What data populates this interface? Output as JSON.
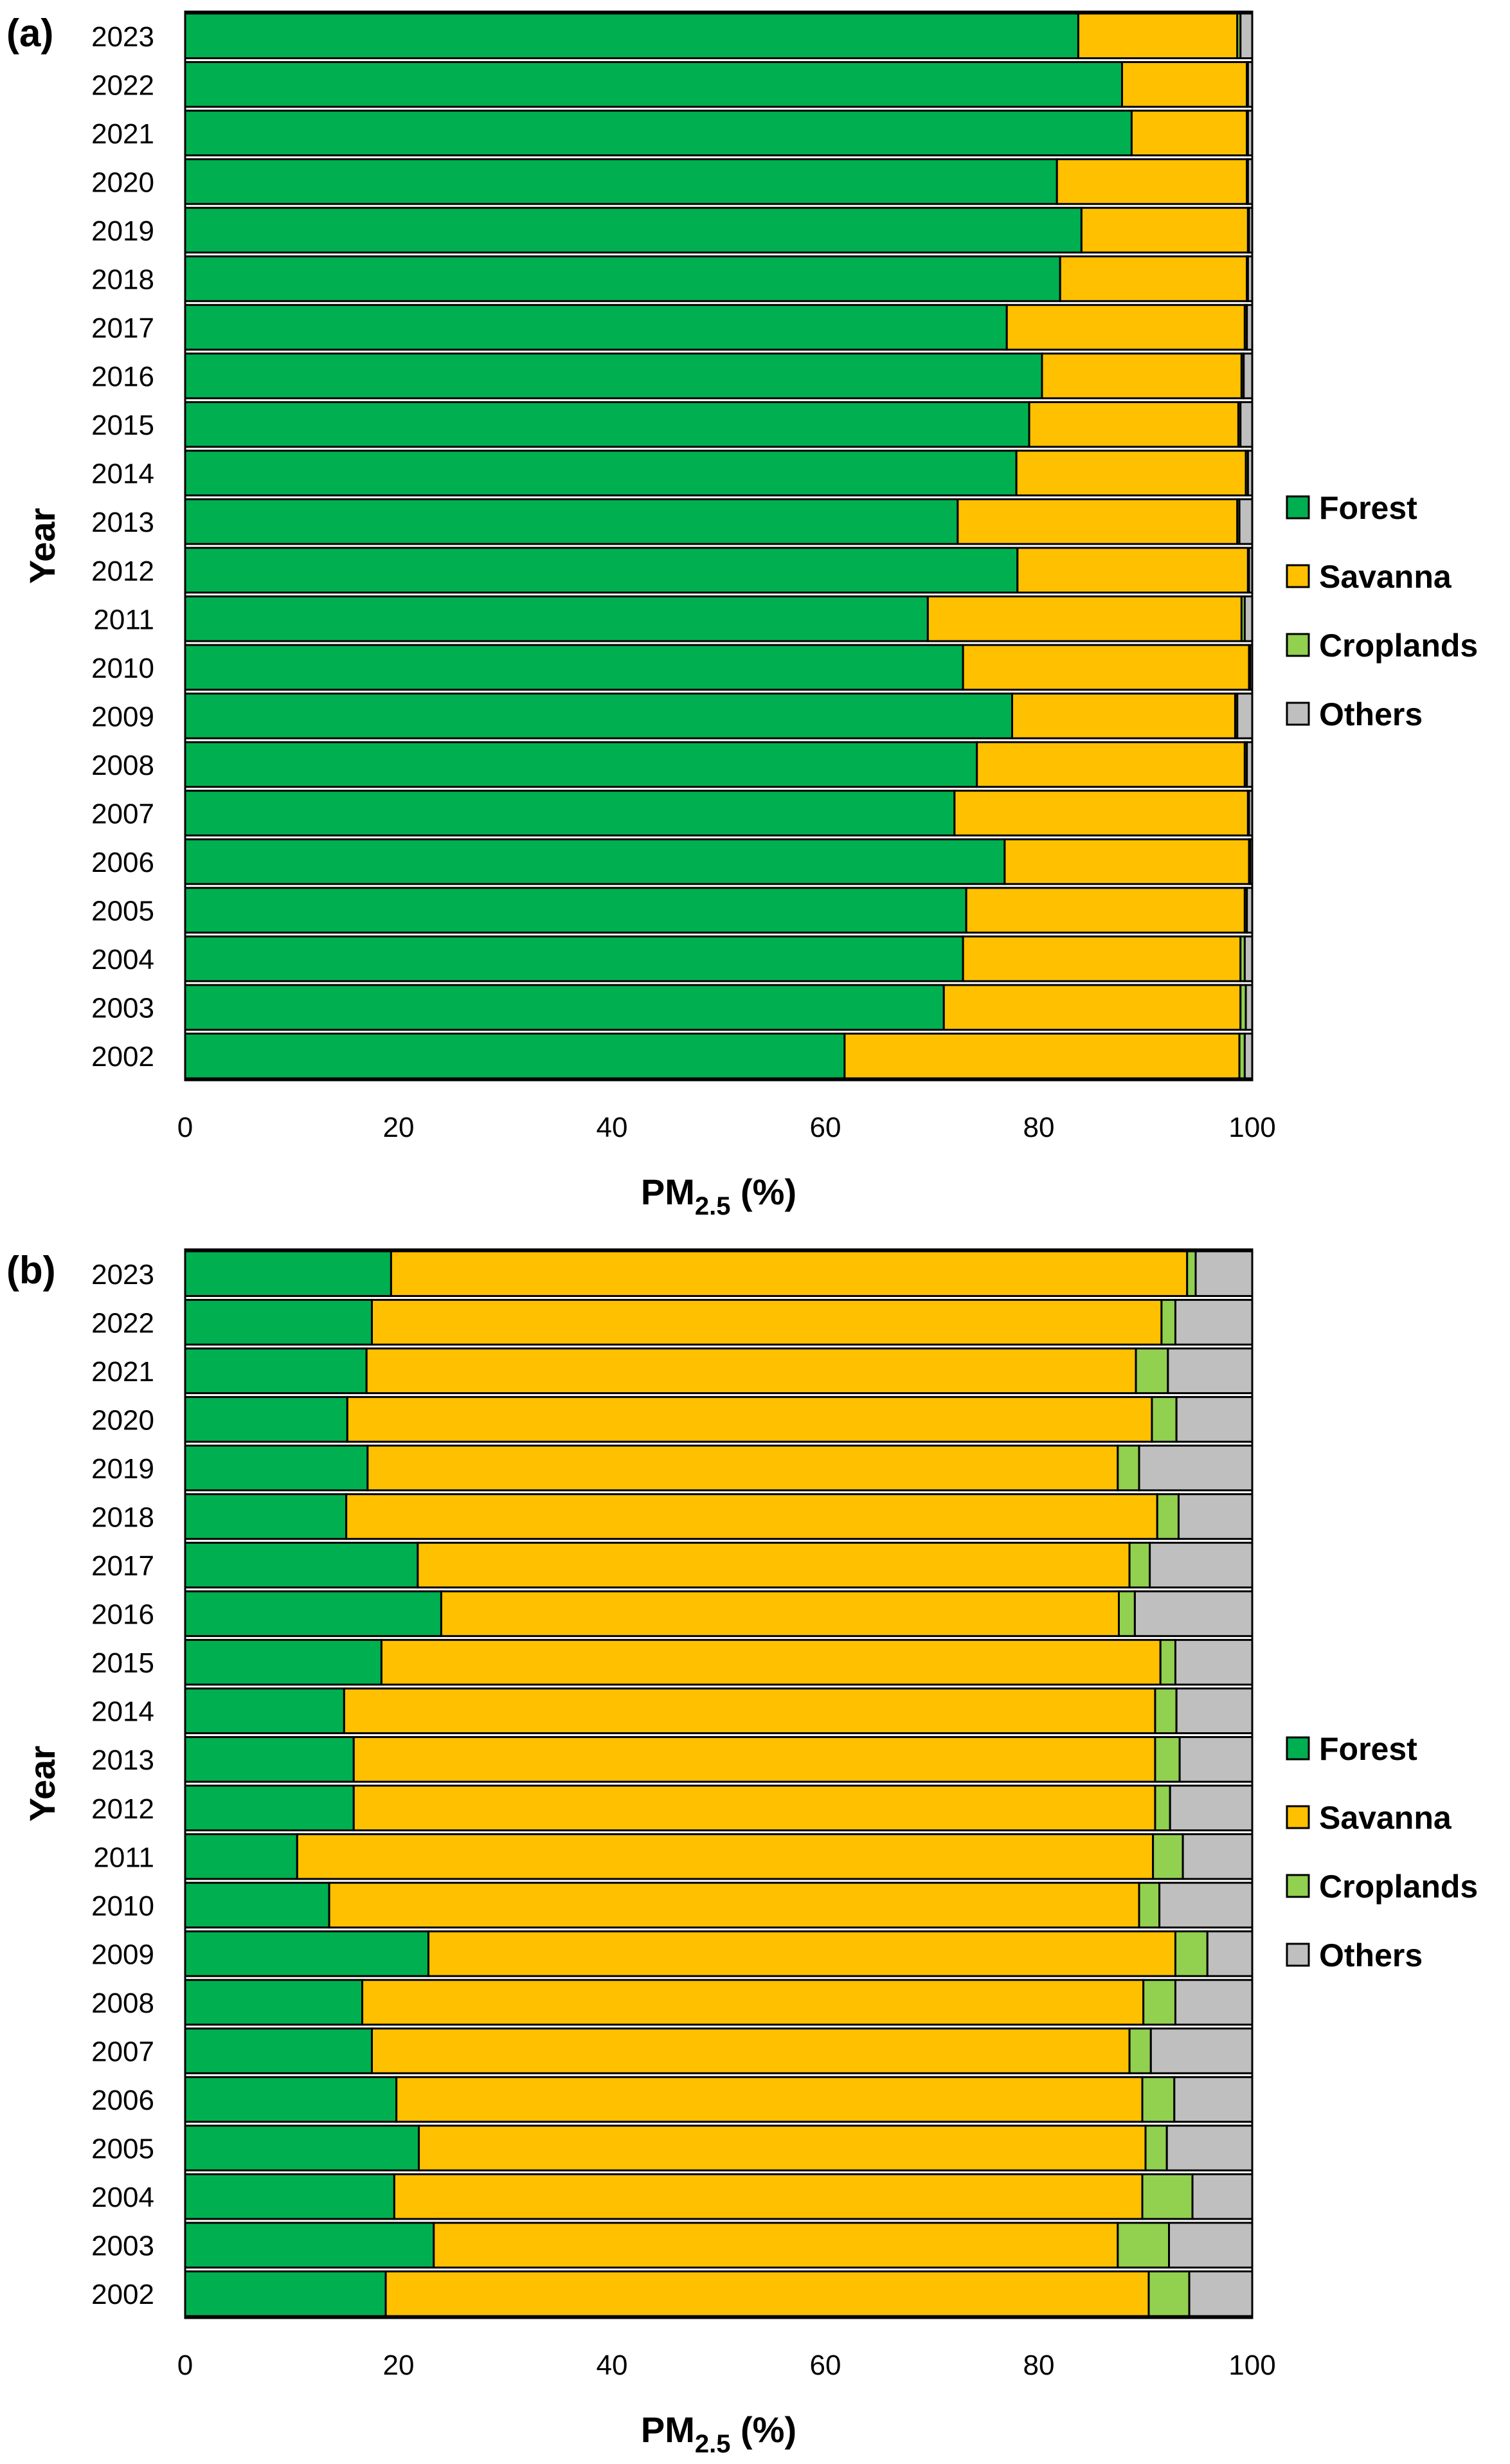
{
  "figure": {
    "panel_labels": [
      "(a)",
      "(b)"
    ]
  },
  "colors": {
    "Forest": "#00b050",
    "Savanna": "#ffc000",
    "Croplands": "#92d050",
    "Others": "#bfbfbf"
  },
  "chart_data": [
    {
      "panel": "(a)",
      "type": "bar",
      "orientation": "horizontal",
      "stacked": true,
      "title": "",
      "xlabel": "PM",
      "xlabel_subscript": "2.5",
      "xlabel_suffix": " (%)",
      "ylabel": "Year",
      "xlim": [
        0,
        100
      ],
      "xticks": [
        0,
        20,
        40,
        60,
        80,
        100
      ],
      "grid": false,
      "legend_position": "right",
      "categories": [
        "2023",
        "2022",
        "2021",
        "2020",
        "2019",
        "2018",
        "2017",
        "2016",
        "2015",
        "2014",
        "2013",
        "2012",
        "2011",
        "2010",
        "2009",
        "2008",
        "2007",
        "2006",
        "2005",
        "2004",
        "2003",
        "2002"
      ],
      "series": [
        {
          "name": "Forest",
          "values": [
            83.7,
            87.8,
            88.7,
            81.7,
            84.0,
            82.0,
            77.0,
            80.3,
            79.1,
            77.9,
            72.4,
            78.0,
            69.6,
            72.9,
            77.5,
            74.2,
            72.1,
            76.8,
            73.2,
            72.9,
            71.1,
            61.8
          ]
        },
        {
          "name": "Savanna",
          "values": [
            14.9,
            11.7,
            10.8,
            17.8,
            15.6,
            17.5,
            22.3,
            18.7,
            19.6,
            21.5,
            26.2,
            21.6,
            29.4,
            26.8,
            20.9,
            25.1,
            27.5,
            22.9,
            26.1,
            26.0,
            27.8,
            37.0
          ]
        },
        {
          "name": "Croplands",
          "values": [
            0.3,
            0.1,
            0.1,
            0.1,
            0.1,
            0.1,
            0.2,
            0.2,
            0.2,
            0.2,
            0.2,
            0.1,
            0.3,
            0.1,
            0.2,
            0.2,
            0.1,
            0.1,
            0.2,
            0.4,
            0.5,
            0.5
          ]
        },
        {
          "name": "Others",
          "values": [
            1.1,
            0.4,
            0.4,
            0.4,
            0.3,
            0.4,
            0.5,
            0.8,
            1.1,
            0.4,
            1.2,
            0.3,
            0.7,
            0.2,
            1.4,
            0.5,
            0.3,
            0.2,
            0.5,
            0.7,
            0.6,
            0.7
          ]
        }
      ]
    },
    {
      "panel": "(b)",
      "type": "bar",
      "orientation": "horizontal",
      "stacked": true,
      "title": "",
      "xlabel": "PM",
      "xlabel_subscript": "2.5",
      "xlabel_suffix": " (%)",
      "ylabel": "Year",
      "xlim": [
        0,
        100
      ],
      "xticks": [
        0,
        20,
        40,
        60,
        80,
        100
      ],
      "grid": false,
      "legend_position": "right",
      "categories": [
        "2023",
        "2022",
        "2021",
        "2020",
        "2019",
        "2018",
        "2017",
        "2016",
        "2015",
        "2014",
        "2013",
        "2012",
        "2011",
        "2010",
        "2009",
        "2008",
        "2007",
        "2006",
        "2005",
        "2004",
        "2003",
        "2002"
      ],
      "series": [
        {
          "name": "Forest",
          "values": [
            19.3,
            17.5,
            17.0,
            15.2,
            17.1,
            15.1,
            21.8,
            24.0,
            18.4,
            14.9,
            15.8,
            15.8,
            10.5,
            13.5,
            22.8,
            16.6,
            17.5,
            19.8,
            21.9,
            19.6,
            23.3,
            18.8
          ]
        },
        {
          "name": "Savanna",
          "values": [
            74.6,
            74.0,
            72.1,
            75.4,
            70.3,
            76.0,
            66.7,
            63.5,
            73.0,
            76.0,
            75.1,
            75.1,
            80.2,
            75.9,
            70.0,
            73.2,
            71.0,
            69.9,
            68.1,
            70.1,
            64.1,
            71.5
          ]
        },
        {
          "name": "Croplands",
          "values": [
            0.8,
            1.3,
            3.0,
            2.3,
            2.0,
            2.0,
            1.9,
            1.5,
            1.4,
            2.0,
            2.3,
            1.4,
            2.8,
            1.9,
            3.0,
            3.0,
            2.0,
            3.0,
            2.0,
            4.7,
            4.8,
            3.8
          ]
        },
        {
          "name": "Others",
          "values": [
            5.3,
            7.2,
            7.9,
            7.1,
            10.6,
            6.9,
            9.6,
            11.0,
            7.2,
            7.1,
            6.8,
            7.7,
            6.5,
            8.7,
            4.2,
            7.2,
            9.5,
            7.3,
            8.0,
            5.6,
            7.8,
            5.9
          ]
        }
      ]
    }
  ]
}
